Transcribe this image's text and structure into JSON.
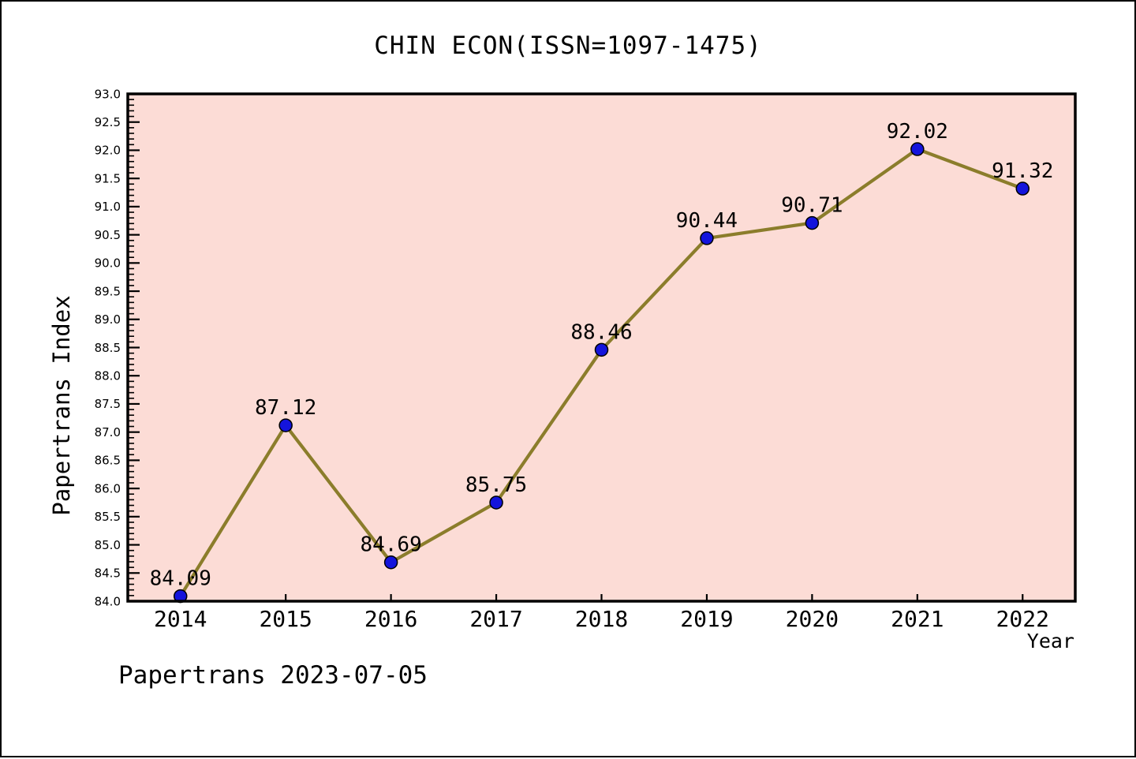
{
  "header": {
    "title": "CHIN ECON(ISSN=1097-1475)"
  },
  "footer": {
    "watermark": "Papertrans 2023-07-05"
  },
  "chart_data": {
    "type": "line",
    "title": "CHIN ECON(ISSN=1097-1475)",
    "xlabel": "Year",
    "ylabel": "Papertrans Index",
    "x": [
      2014,
      2015,
      2016,
      2017,
      2018,
      2019,
      2020,
      2021,
      2022
    ],
    "x_tick_labels": [
      "2014",
      "2015",
      "2016",
      "2017",
      "2018",
      "2019",
      "2020",
      "2021",
      "2022"
    ],
    "series": [
      {
        "name": "Papertrans Index",
        "values": [
          84.09,
          87.12,
          84.69,
          85.75,
          88.46,
          90.44,
          90.71,
          92.02,
          91.32
        ],
        "data_labels": [
          "84.09",
          "87.12",
          "84.69",
          "85.75",
          "88.46",
          "90.44",
          "90.71",
          "92.02",
          "91.32"
        ]
      }
    ],
    "xlim": [
      2013.5,
      2022.5
    ],
    "ylim": [
      84.0,
      93.0
    ],
    "y_major_step": 0.5,
    "y_minor_step": 0.1,
    "y_tick_labels": [
      "84.0",
      "84.5",
      "85.0",
      "85.5",
      "86.0",
      "86.5",
      "87.0",
      "87.5",
      "88.0",
      "88.5",
      "89.0",
      "89.5",
      "90.0",
      "90.5",
      "91.0",
      "91.5",
      "92.0",
      "92.5",
      "93.0"
    ],
    "grid": false,
    "legend": "none",
    "colors": {
      "plot_background": "#fcdcd6",
      "line": "#8b7d2b",
      "marker_fill": "#1414dc",
      "marker_edge": "#000000",
      "axis": "#000000",
      "text": "#000000"
    }
  }
}
